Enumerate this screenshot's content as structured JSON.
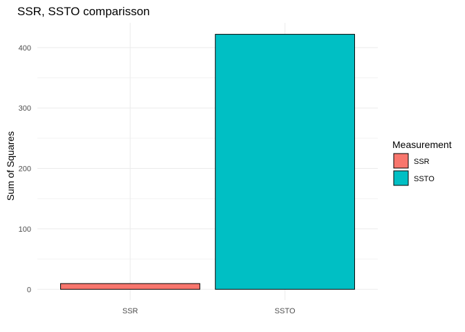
{
  "chart_data": {
    "type": "bar",
    "title": "SSR, SSTO comparisson",
    "xlabel": "",
    "ylabel": "Sum of Squares",
    "categories": [
      "SSR",
      "SSTO"
    ],
    "values": [
      9.5,
      422
    ],
    "colors": [
      "#F8766D",
      "#00BFC4"
    ],
    "bar_outline_color": "#000000",
    "ylim": [
      -18,
      441
    ],
    "yticks": [
      0,
      100,
      200,
      300,
      400
    ],
    "grid": true,
    "legend": {
      "title": "Measurement",
      "position": "right",
      "entries": [
        {
          "label": "SSR",
          "color": "#F8766D"
        },
        {
          "label": "SSTO",
          "color": "#00BFC4"
        }
      ]
    }
  }
}
